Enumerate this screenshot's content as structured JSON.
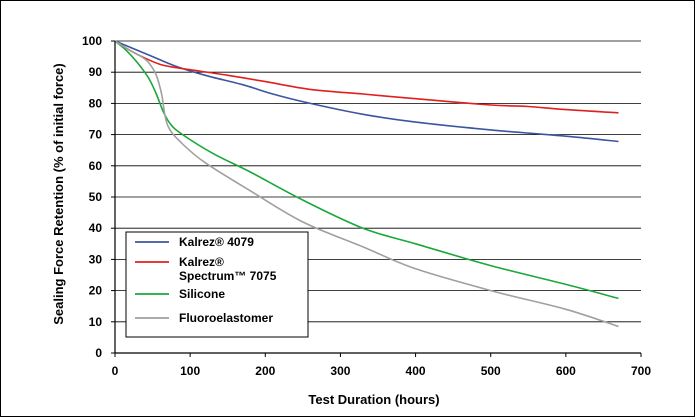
{
  "chart_data": {
    "type": "line",
    "title": "",
    "xlabel": "Test Duration (hours)",
    "ylabel": "Sealing Force Retention (% of initial force)",
    "xlim": [
      0,
      700
    ],
    "ylim": [
      0,
      100
    ],
    "x_ticks": [
      0,
      100,
      200,
      300,
      400,
      500,
      600,
      700
    ],
    "y_ticks": [
      0,
      10,
      20,
      30,
      40,
      50,
      60,
      70,
      80,
      90,
      100
    ],
    "grid": "horizontal",
    "legend_position": "lower-left",
    "series": [
      {
        "name": "Kalrez® 4079",
        "color": "#3b55a0",
        "points": [
          [
            0,
            100
          ],
          [
            20,
            98
          ],
          [
            50,
            95
          ],
          [
            80,
            92
          ],
          [
            120,
            89
          ],
          [
            170,
            86
          ],
          [
            210,
            83
          ],
          [
            260,
            80
          ],
          [
            330,
            76.5
          ],
          [
            400,
            74
          ],
          [
            500,
            71.5
          ],
          [
            600,
            69.5
          ],
          [
            670,
            67.8
          ]
        ]
      },
      {
        "name_lines": [
          "Kalrez®",
          "Spectrum™ 7075"
        ],
        "name": "Kalrez® Spectrum™ 7075",
        "color": "#e02020",
        "points": [
          [
            0,
            100
          ],
          [
            20,
            97
          ],
          [
            40,
            94.5
          ],
          [
            60,
            92.5
          ],
          [
            80,
            91.5
          ],
          [
            100,
            90.8
          ],
          [
            150,
            89
          ],
          [
            200,
            87
          ],
          [
            260,
            84.5
          ],
          [
            330,
            83
          ],
          [
            400,
            81.5
          ],
          [
            500,
            79.5
          ],
          [
            550,
            79
          ],
          [
            600,
            78
          ],
          [
            670,
            77
          ]
        ]
      },
      {
        "name": "Silicone",
        "color": "#1aa83a",
        "points": [
          [
            0,
            100
          ],
          [
            15,
            97
          ],
          [
            30,
            93
          ],
          [
            45,
            88
          ],
          [
            55,
            83
          ],
          [
            65,
            77
          ],
          [
            75,
            73
          ],
          [
            90,
            70
          ],
          [
            130,
            64
          ],
          [
            180,
            58
          ],
          [
            250,
            49
          ],
          [
            330,
            40
          ],
          [
            400,
            35
          ],
          [
            500,
            28
          ],
          [
            600,
            22
          ],
          [
            670,
            17.5
          ]
        ]
      },
      {
        "name": "Fluoroelastomer",
        "color": "#a0a0a0",
        "points": [
          [
            0,
            100
          ],
          [
            20,
            97
          ],
          [
            35,
            95
          ],
          [
            45,
            93
          ],
          [
            55,
            89
          ],
          [
            62,
            83
          ],
          [
            70,
            73
          ],
          [
            90,
            67
          ],
          [
            120,
            61
          ],
          [
            180,
            52
          ],
          [
            250,
            42
          ],
          [
            330,
            34
          ],
          [
            400,
            27
          ],
          [
            500,
            20
          ],
          [
            600,
            14
          ],
          [
            670,
            8.5
          ]
        ]
      }
    ]
  }
}
